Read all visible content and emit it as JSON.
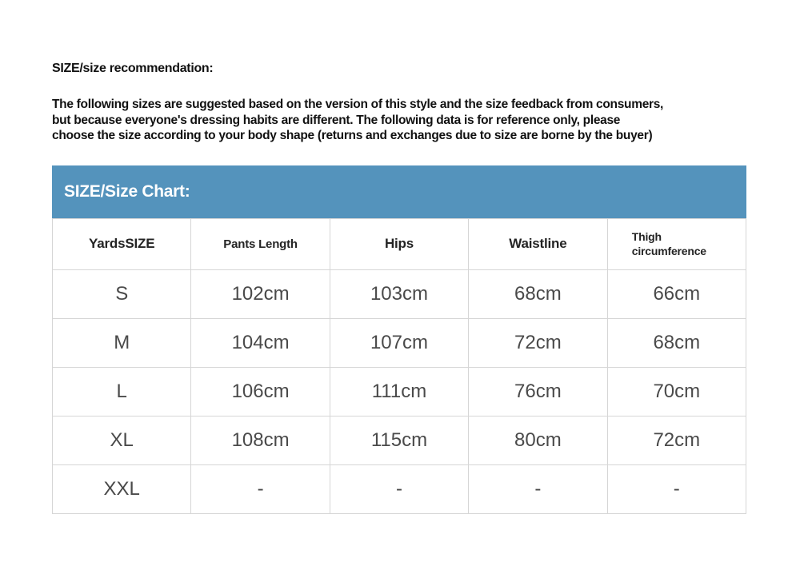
{
  "recommendation": {
    "heading": "SIZE/size recommendation:",
    "body": "The following sizes are suggested based on the version of this style and the size feedback from consumers,\nbut because everyone's dressing habits are different. The following data is for reference only, please\nchoose the size according to your body shape (returns and exchanges due to size are borne by the buyer)"
  },
  "size_chart": {
    "title": "SIZE/Size Chart:",
    "banner_color": "#5493bc",
    "banner_text_color": "#ffffff",
    "border_color": "#d6d6d6",
    "columns": [
      "YardsSIZE",
      "Pants Length",
      "Hips",
      "Waistline",
      "Thigh circumference"
    ],
    "rows": [
      {
        "size": "S",
        "values": [
          "102cm",
          "103cm",
          "68cm",
          "66cm"
        ]
      },
      {
        "size": "M",
        "values": [
          "104cm",
          "107cm",
          "72cm",
          "68cm"
        ]
      },
      {
        "size": "L",
        "values": [
          "106cm",
          "111cm",
          "76cm",
          "70cm"
        ]
      },
      {
        "size": "XL",
        "values": [
          "108cm",
          "115cm",
          "80cm",
          "72cm"
        ]
      },
      {
        "size": "XXL",
        "values": [
          "-",
          "-",
          "-",
          "-"
        ]
      }
    ]
  }
}
